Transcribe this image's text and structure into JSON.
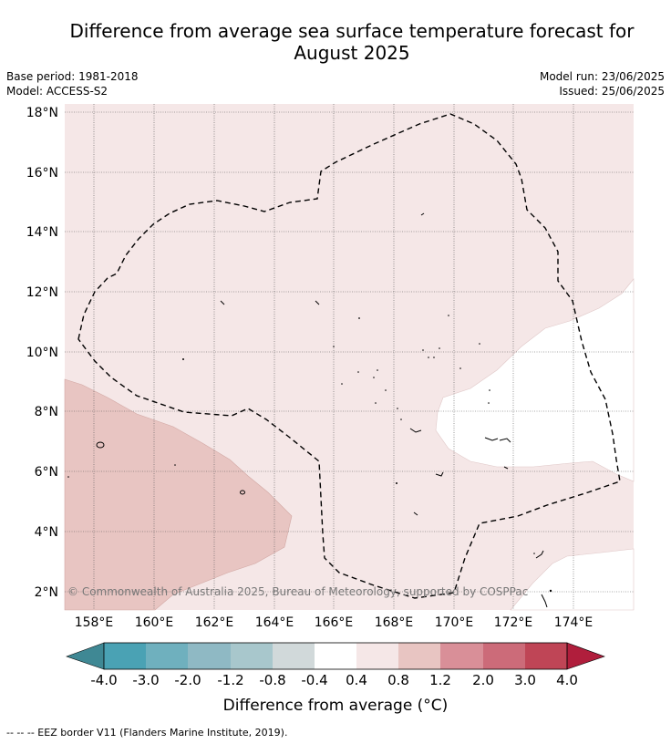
{
  "header": {
    "title_line1": "Difference from average sea surface temperature forecast for",
    "title_line2": "August 2025",
    "base_period": "Base period: 1981-2018",
    "model": "Model: ACCESS-S2",
    "model_run": "Model run: 23/06/2025",
    "issued": "Issued: 25/06/2025"
  },
  "map": {
    "lat_labels": [
      "18°N",
      "16°N",
      "14°N",
      "12°N",
      "10°N",
      "8°N",
      "6°N",
      "4°N",
      "2°N"
    ],
    "lon_labels": [
      "158°E",
      "160°E",
      "162°E",
      "164°E",
      "166°E",
      "168°E",
      "170°E",
      "172°E",
      "174°E"
    ],
    "copyright": "© Commonwealth of Australia 2025, Bureau of Meteorology, supported by COSPPac",
    "colors": {
      "anomaly_0_4_to_0_8": "#f5e7e7",
      "anomaly_0_8_to_1_2": "#e8c5c2",
      "neutral": "#ffffff",
      "eez_line": "#000000"
    }
  },
  "colorbar": {
    "ticks": [
      "-4.0",
      "-3.0",
      "-2.0",
      "-1.2",
      "-0.8",
      "-0.4",
      "0.4",
      "0.8",
      "1.2",
      "2.0",
      "3.0",
      "4.0"
    ],
    "colors": [
      "#3f8894",
      "#4aa2b4",
      "#6fb0be",
      "#8fb9c4",
      "#a8c7cc",
      "#d1d9da",
      "#ffffff",
      "#f5e7e7",
      "#e8c5c2",
      "#d98f98",
      "#cc6b79",
      "#bf4556",
      "#b01e3c"
    ],
    "label": "Difference from average (°C)"
  },
  "footer": {
    "legend": "--  --  -- EEZ border V11 (Flanders Marine Institute, 2019)."
  }
}
